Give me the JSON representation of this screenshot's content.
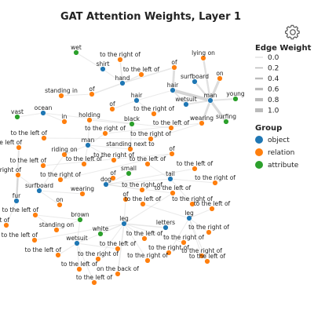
{
  "title": "GAT Attention Weights, Layer 1",
  "settings_icon": "gear-icon",
  "legend": {
    "edge_title": "Edge Weight",
    "edge_levels": [
      "0.0",
      "0.2",
      "0.4",
      "0.6",
      "0.8",
      "1.0"
    ],
    "group_title": "Group",
    "groups": [
      {
        "label": "object",
        "color": "#1f77b4"
      },
      {
        "label": "relation",
        "color": "#ff7f0e"
      },
      {
        "label": "attribute",
        "color": "#2ca02c"
      }
    ]
  },
  "nodes": [
    {
      "id": "n0",
      "label": "wet",
      "group": "attribute"
    },
    {
      "id": "n1",
      "label": "to the right of",
      "group": "relation"
    },
    {
      "id": "n2",
      "label": "shirt",
      "group": "object"
    },
    {
      "id": "n3",
      "label": "to the left of",
      "group": "relation"
    },
    {
      "id": "n4",
      "label": "lying on",
      "group": "relation"
    },
    {
      "id": "n5",
      "label": "of",
      "group": "relation"
    },
    {
      "id": "n6",
      "label": "hand",
      "group": "object"
    },
    {
      "id": "n7",
      "label": "surfboard",
      "group": "object"
    },
    {
      "id": "n8",
      "label": "on",
      "group": "relation"
    },
    {
      "id": "n9",
      "label": "standing in",
      "group": "relation"
    },
    {
      "id": "n10",
      "label": "of",
      "group": "relation"
    },
    {
      "id": "n11",
      "label": "hair",
      "group": "object"
    },
    {
      "id": "n12",
      "label": "hair",
      "group": "object"
    },
    {
      "id": "n13",
      "label": "young",
      "group": "attribute"
    },
    {
      "id": "n14",
      "label": "wetsuit",
      "group": "object"
    },
    {
      "id": "n15",
      "label": "man",
      "group": "object"
    },
    {
      "id": "n16",
      "label": "ocean",
      "group": "object"
    },
    {
      "id": "n17",
      "label": "of",
      "group": "relation"
    },
    {
      "id": "n18",
      "label": "to the right of",
      "group": "relation"
    },
    {
      "id": "n19",
      "label": "vast",
      "group": "attribute"
    },
    {
      "id": "n20",
      "label": "in",
      "group": "relation"
    },
    {
      "id": "n21",
      "label": "holding",
      "group": "relation"
    },
    {
      "id": "n22",
      "label": "black",
      "group": "attribute"
    },
    {
      "id": "n23",
      "label": "wearing",
      "group": "relation"
    },
    {
      "id": "n24",
      "label": "surfing",
      "group": "attribute"
    },
    {
      "id": "n25",
      "label": "to the left of",
      "group": "relation"
    },
    {
      "id": "n26",
      "label": "to the right of",
      "group": "relation"
    },
    {
      "id": "n27",
      "label": "to the left of",
      "group": "relation"
    },
    {
      "id": "n28",
      "label": "to the right of",
      "group": "relation"
    },
    {
      "id": "n29",
      "label": "man",
      "group": "object"
    },
    {
      "id": "n30",
      "label": "to the left of",
      "group": "relation"
    },
    {
      "id": "n31",
      "label": "standing next to",
      "group": "relation"
    },
    {
      "id": "n32",
      "label": "riding on",
      "group": "relation"
    },
    {
      "id": "n33",
      "label": "to the right of",
      "group": "relation"
    },
    {
      "id": "n34",
      "label": "to the left of",
      "group": "relation"
    },
    {
      "id": "n35",
      "label": "of",
      "group": "relation"
    },
    {
      "id": "n36",
      "label": "to the left of",
      "group": "relation"
    },
    {
      "id": "n37",
      "label": "to the left of",
      "group": "relation"
    },
    {
      "id": "n38",
      "label": "the right of",
      "group": "relation"
    },
    {
      "id": "n39",
      "label": "to the right of",
      "group": "relation"
    },
    {
      "id": "n40",
      "label": "of",
      "group": "relation"
    },
    {
      "id": "n41",
      "label": "small",
      "group": "attribute"
    },
    {
      "id": "n42",
      "label": "tail",
      "group": "object"
    },
    {
      "id": "n43",
      "label": "to the right of",
      "group": "relation"
    },
    {
      "id": "n44",
      "label": "surfboard",
      "group": "object"
    },
    {
      "id": "n45",
      "label": "dog",
      "group": "object"
    },
    {
      "id": "n46",
      "label": "to the right of",
      "group": "relation"
    },
    {
      "id": "n47",
      "label": "to the left of",
      "group": "relation"
    },
    {
      "id": "n48",
      "label": "wearing",
      "group": "relation"
    },
    {
      "id": "n49",
      "label": "of",
      "group": "relation"
    },
    {
      "id": "n50",
      "label": "to the left of",
      "group": "relation"
    },
    {
      "id": "n51",
      "label": "fur",
      "group": "object"
    },
    {
      "id": "n52",
      "label": "on",
      "group": "relation"
    },
    {
      "id": "n53",
      "label": "to the right of",
      "group": "relation"
    },
    {
      "id": "n54",
      "label": "to the left of",
      "group": "relation"
    },
    {
      "id": "n55",
      "label": "to the left of",
      "group": "relation"
    },
    {
      "id": "n56",
      "label": "to the left of",
      "group": "relation"
    },
    {
      "id": "n57",
      "label": "brown",
      "group": "attribute"
    },
    {
      "id": "n58",
      "label": "leg",
      "group": "object"
    },
    {
      "id": "n59",
      "label": "e right of",
      "group": "relation"
    },
    {
      "id": "n60",
      "label": "standing on",
      "group": "relation"
    },
    {
      "id": "n61",
      "label": "leg",
      "group": "object"
    },
    {
      "id": "n62",
      "label": "letters",
      "group": "object"
    },
    {
      "id": "n63",
      "label": "to the right of",
      "group": "relation"
    },
    {
      "id": "n64",
      "label": "white",
      "group": "attribute"
    },
    {
      "id": "n65",
      "label": "to the left of",
      "group": "relation"
    },
    {
      "id": "n66",
      "label": "to the left of",
      "group": "relation"
    },
    {
      "id": "n67",
      "label": "to the right of",
      "group": "relation"
    },
    {
      "id": "n68",
      "label": "wetsuit",
      "group": "object"
    },
    {
      "id": "n69",
      "label": "to the left of",
      "group": "relation"
    },
    {
      "id": "n70",
      "label": "to the right of",
      "group": "relation"
    },
    {
      "id": "n71",
      "label": "to the right of",
      "group": "relation"
    },
    {
      "id": "n72",
      "label": "to the left of",
      "group": "relation"
    },
    {
      "id": "n73",
      "label": "to the right of",
      "group": "relation"
    },
    {
      "id": "n74",
      "label": "to the right of",
      "group": "relation"
    },
    {
      "id": "n75",
      "label": "to the left of",
      "group": "relation"
    },
    {
      "id": "n76",
      "label": "to the left of",
      "group": "relation"
    },
    {
      "id": "n77",
      "label": "on the back of",
      "group": "relation"
    },
    {
      "id": "n78",
      "label": "to the left of",
      "group": "relation"
    }
  ],
  "edges": [
    {
      "s": "n11",
      "t": "n15",
      "w": 0.8
    },
    {
      "s": "n5",
      "t": "n11",
      "w": 0.5
    },
    {
      "s": "n8",
      "t": "n15",
      "w": 0.6
    },
    {
      "s": "n15",
      "t": "n24",
      "w": 0.6
    },
    {
      "s": "n4",
      "t": "n15",
      "w": 0.4
    },
    {
      "s": "n7",
      "t": "n15",
      "w": 0.4
    },
    {
      "s": "n15",
      "t": "n23",
      "w": 0.5
    },
    {
      "s": "n15",
      "t": "n13",
      "w": 0.3
    },
    {
      "s": "n14",
      "t": "n15",
      "w": 0.3
    },
    {
      "s": "n11",
      "t": "n14",
      "w": 0.3
    },
    {
      "s": "n6",
      "t": "n3",
      "w": 0.2
    },
    {
      "s": "n6",
      "t": "n1",
      "w": 0.2
    },
    {
      "s": "n6",
      "t": "n10",
      "w": 0.2
    },
    {
      "s": "n6",
      "t": "n5",
      "w": 0.2
    },
    {
      "s": "n2",
      "t": "n6",
      "w": 0.1
    },
    {
      "s": "n0",
      "t": "n2",
      "w": 0.1
    },
    {
      "s": "n9",
      "t": "n10",
      "w": 0.1
    },
    {
      "s": "n12",
      "t": "n17",
      "w": 0.1
    },
    {
      "s": "n12",
      "t": "n18",
      "w": 0.1
    },
    {
      "s": "n12",
      "t": "n11",
      "w": 0.1
    },
    {
      "s": "n16",
      "t": "n20",
      "w": 0.1
    },
    {
      "s": "n19",
      "t": "n16",
      "w": 0.1
    },
    {
      "s": "n22",
      "t": "n21",
      "w": 0.1
    },
    {
      "s": "n22",
      "t": "n31",
      "w": 0.1
    },
    {
      "s": "n29",
      "t": "n21",
      "w": 0.1
    },
    {
      "s": "n29",
      "t": "n26",
      "w": 0.1
    },
    {
      "s": "n29",
      "t": "n32",
      "w": 0.1
    },
    {
      "s": "n29",
      "t": "n33",
      "w": 0.1
    },
    {
      "s": "n29",
      "t": "n34",
      "w": 0.1
    },
    {
      "s": "n16",
      "t": "n25",
      "w": 0.1
    },
    {
      "s": "n44",
      "t": "n48",
      "w": 0.1
    },
    {
      "s": "n44",
      "t": "n52",
      "w": 0.1
    },
    {
      "s": "n44",
      "t": "n38",
      "w": 0.1
    },
    {
      "s": "n44",
      "t": "n32",
      "w": 0.1
    },
    {
      "s": "n51",
      "t": "n38",
      "w": 0.4
    },
    {
      "s": "n51",
      "t": "n30",
      "w": 0.3
    },
    {
      "s": "n51",
      "t": "n59",
      "w": 0.1
    },
    {
      "s": "n45",
      "t": "n40",
      "w": 0.1
    },
    {
      "s": "n45",
      "t": "n41",
      "w": 0.1
    },
    {
      "s": "n45",
      "t": "n47",
      "w": 0.1
    },
    {
      "s": "n45",
      "t": "n46",
      "w": 0.1
    },
    {
      "s": "n45",
      "t": "n50",
      "w": 0.1
    },
    {
      "s": "n42",
      "t": "n45",
      "w": 0.1
    },
    {
      "s": "n42",
      "t": "n36",
      "w": 0.1
    },
    {
      "s": "n42",
      "t": "n43",
      "w": 0.1
    },
    {
      "s": "n42",
      "t": "n53",
      "w": 0.1
    },
    {
      "s": "n58",
      "t": "n77",
      "w": 0.2
    },
    {
      "s": "n58",
      "t": "n62",
      "w": 0.2
    },
    {
      "s": "n58",
      "t": "n64",
      "w": 0.2
    },
    {
      "s": "n58",
      "t": "n74",
      "w": 0.1
    },
    {
      "s": "n58",
      "t": "n73",
      "w": 0.1
    },
    {
      "s": "n58",
      "t": "n49",
      "w": 0.1
    },
    {
      "s": "n58",
      "t": "n50",
      "w": 0.1
    },
    {
      "s": "n58",
      "t": "n66",
      "w": 0.1
    },
    {
      "s": "n58",
      "t": "n67",
      "w": 0.1
    },
    {
      "s": "n61",
      "t": "n63",
      "w": 0.1
    },
    {
      "s": "n61",
      "t": "n70",
      "w": 0.1
    },
    {
      "s": "n61",
      "t": "n71",
      "w": 0.1
    },
    {
      "s": "n61",
      "t": "n75",
      "w": 0.1
    },
    {
      "s": "n61",
      "t": "n56",
      "w": 0.1
    },
    {
      "s": "n61",
      "t": "n54",
      "w": 0.1
    },
    {
      "s": "n68",
      "t": "n69",
      "w": 0.1
    },
    {
      "s": "n68",
      "t": "n72",
      "w": 0.1
    },
    {
      "s": "n68",
      "t": "n76",
      "w": 0.1
    },
    {
      "s": "n68",
      "t": "n78",
      "w": 0.1
    },
    {
      "s": "n68",
      "t": "n64",
      "w": 0.1
    },
    {
      "s": "n57",
      "t": "n60",
      "w": 0.1
    },
    {
      "s": "n57",
      "t": "n68",
      "w": 0.1
    },
    {
      "s": "n57",
      "t": "n55",
      "w": 0.1
    },
    {
      "s": "n55",
      "t": "n60",
      "w": 0.1
    },
    {
      "s": "n35",
      "t": "n39",
      "w": 0.1
    },
    {
      "s": "n35",
      "t": "n37",
      "w": 0.1
    },
    {
      "s": "n28",
      "t": "n27",
      "w": 0.1
    },
    {
      "s": "n31",
      "t": "n29",
      "w": 0.1
    },
    {
      "s": "n23",
      "t": "n26",
      "w": 0.1
    },
    {
      "s": "n23",
      "t": "n28",
      "w": 0.1
    },
    {
      "s": "n65",
      "t": "n58",
      "w": 0.1
    }
  ]
}
